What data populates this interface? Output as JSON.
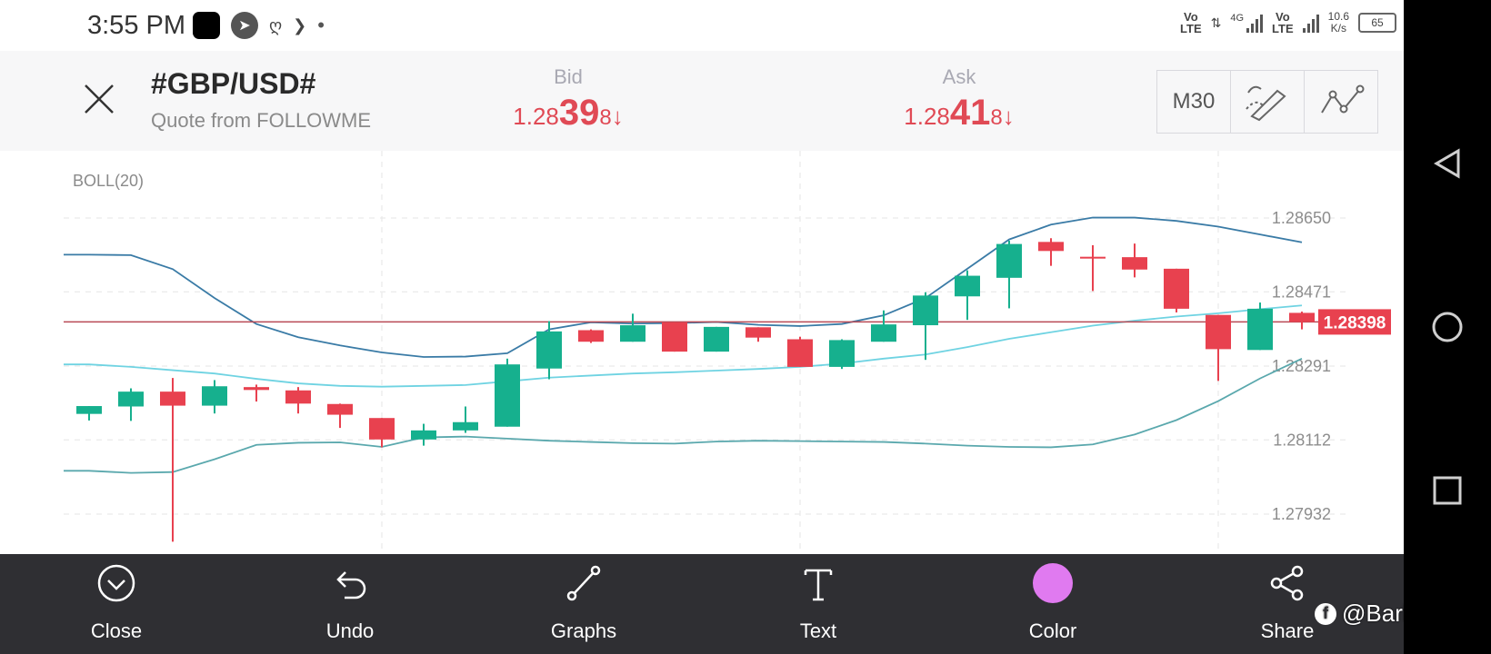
{
  "status_bar": {
    "time": "3:55 PM",
    "net1": "Vo\nLTE",
    "net_type": "4G",
    "net2": "Vo\nLTE",
    "speed": "10.6\nK/s",
    "battery": "65"
  },
  "header": {
    "symbol": "#GBP/USD#",
    "quote_source": "Quote from FOLLOWME",
    "bid": {
      "label": "Bid",
      "prefix": "1.28",
      "big": "39",
      "suffix": "8",
      "arrow": "↓"
    },
    "ask": {
      "label": "Ask",
      "prefix": "1.28",
      "big": "41",
      "suffix": "8",
      "arrow": "↓"
    },
    "timeframe": "M30"
  },
  "chart_data": {
    "type": "candlestick",
    "indicator": "BOLL(20)",
    "y_ticks": [
      "1.28650",
      "1.28471",
      "1.28291",
      "1.28112",
      "1.27932"
    ],
    "ylim": [
      1.2789,
      1.2873
    ],
    "current_price": "1.28398",
    "colors": {
      "up": "#16b08e",
      "down": "#e8414f",
      "upper": "#3a7ba6",
      "middle": "#6fd3e2",
      "lower": "#5aa8ad",
      "price_line": "#b94a55"
    },
    "candles": [
      {
        "o": 1.28175,
        "h": 1.28194,
        "l": 1.28159,
        "c": 1.28194
      },
      {
        "o": 1.28193,
        "h": 1.28237,
        "l": 1.28158,
        "c": 1.28229
      },
      {
        "o": 1.28229,
        "h": 1.28262,
        "l": 1.27865,
        "c": 1.28195
      },
      {
        "o": 1.28195,
        "h": 1.28257,
        "l": 1.28176,
        "c": 1.28242
      },
      {
        "o": 1.2824,
        "h": 1.28246,
        "l": 1.28205,
        "c": 1.28233
      },
      {
        "o": 1.28232,
        "h": 1.2824,
        "l": 1.28176,
        "c": 1.282
      },
      {
        "o": 1.28199,
        "h": 1.282,
        "l": 1.28141,
        "c": 1.28173
      },
      {
        "o": 1.28165,
        "h": 1.28165,
        "l": 1.28094,
        "c": 1.28113
      },
      {
        "o": 1.28113,
        "h": 1.28151,
        "l": 1.28098,
        "c": 1.28135
      },
      {
        "o": 1.28135,
        "h": 1.28193,
        "l": 1.28129,
        "c": 1.28155
      },
      {
        "o": 1.28144,
        "h": 1.28309,
        "l": 1.28144,
        "c": 1.28295
      },
      {
        "o": 1.28285,
        "h": 1.284,
        "l": 1.28259,
        "c": 1.28375
      },
      {
        "o": 1.28378,
        "h": 1.2838,
        "l": 1.28347,
        "c": 1.2835
      },
      {
        "o": 1.2835,
        "h": 1.28418,
        "l": 1.2835,
        "c": 1.2839
      },
      {
        "o": 1.28397,
        "h": 1.28397,
        "l": 1.28326,
        "c": 1.28326
      },
      {
        "o": 1.28326,
        "h": 1.28386,
        "l": 1.28326,
        "c": 1.28386
      },
      {
        "o": 1.28385,
        "h": 1.28385,
        "l": 1.2835,
        "c": 1.2836
      },
      {
        "o": 1.28356,
        "h": 1.28362,
        "l": 1.28289,
        "c": 1.28289
      },
      {
        "o": 1.28289,
        "h": 1.28356,
        "l": 1.28284,
        "c": 1.28354
      },
      {
        "o": 1.2835,
        "h": 1.28426,
        "l": 1.2835,
        "c": 1.28392
      },
      {
        "o": 1.2839,
        "h": 1.2847,
        "l": 1.28306,
        "c": 1.28462
      },
      {
        "o": 1.2846,
        "h": 1.28523,
        "l": 1.28403,
        "c": 1.2851
      },
      {
        "o": 1.28505,
        "h": 1.28595,
        "l": 1.28431,
        "c": 1.28587
      },
      {
        "o": 1.28592,
        "h": 1.28601,
        "l": 1.28534,
        "c": 1.2857
      },
      {
        "o": 1.28556,
        "h": 1.28584,
        "l": 1.28473,
        "c": 1.28555
      },
      {
        "o": 1.28555,
        "h": 1.28588,
        "l": 1.28506,
        "c": 1.28525
      },
      {
        "o": 1.28527,
        "h": 1.28527,
        "l": 1.28421,
        "c": 1.2843
      },
      {
        "o": 1.28415,
        "h": 1.28415,
        "l": 1.28255,
        "c": 1.28332
      },
      {
        "o": 1.2833,
        "h": 1.28445,
        "l": 1.2833,
        "c": 1.2843
      },
      {
        "o": 1.2842,
        "h": 1.28423,
        "l": 1.2838,
        "c": 1.28398
      }
    ],
    "boll_upper": [
      1.28561,
      1.2856,
      1.28526,
      1.28456,
      1.28393,
      1.28361,
      1.28341,
      1.28324,
      1.28313,
      1.28314,
      1.28322,
      1.2838,
      1.28397,
      1.28394,
      1.28395,
      1.28398,
      1.28391,
      1.28388,
      1.28393,
      1.28414,
      1.28456,
      1.28527,
      1.28598,
      1.28634,
      1.28651,
      1.28651,
      1.28643,
      1.28629,
      1.2861,
      1.28591
    ],
    "boll_middle": [
      1.28295,
      1.28289,
      1.28281,
      1.28273,
      1.2826,
      1.28249,
      1.28243,
      1.28241,
      1.28243,
      1.28245,
      1.28254,
      1.28263,
      1.28268,
      1.28273,
      1.28276,
      1.2828,
      1.28284,
      1.28289,
      1.28297,
      1.28309,
      1.28319,
      1.28337,
      1.28357,
      1.28373,
      1.28389,
      1.28401,
      1.28411,
      1.28419,
      1.28429,
      1.28438
    ],
    "boll_lower": [
      1.28037,
      1.28032,
      1.28034,
      1.28065,
      1.281,
      1.28105,
      1.28106,
      1.28095,
      1.28118,
      1.2812,
      1.28115,
      1.2811,
      1.28107,
      1.28104,
      1.28103,
      1.28108,
      1.2811,
      1.28109,
      1.28108,
      1.28107,
      1.28103,
      1.28098,
      1.28095,
      1.28094,
      1.28101,
      1.28125,
      1.2816,
      1.28206,
      1.28261,
      1.28309
    ]
  },
  "toolbar": {
    "close": "Close",
    "undo": "Undo",
    "graphs": "Graphs",
    "text": "Text",
    "color": "Color",
    "share": "Share",
    "color_value": "#e07af0"
  },
  "watermark": "@Barkat Ali",
  "watermark_icon": "f"
}
